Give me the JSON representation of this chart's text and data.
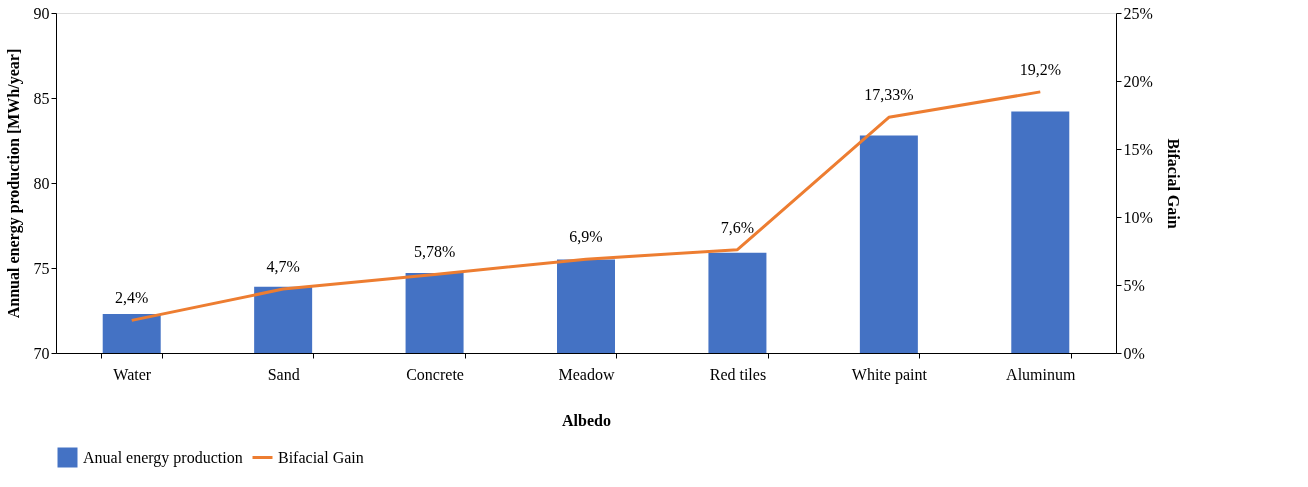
{
  "chart_data": {
    "type": "bar",
    "categories": [
      "Water",
      "Sand",
      "Concrete",
      "Meadow",
      "Red tiles",
      "White paint",
      "Aluminum"
    ],
    "xlabel": "Albedo",
    "ylabel": "Annual energy production [MWh/year]",
    "y2label": "Bifacial Gain",
    "series": [
      {
        "name": "Anual energy production",
        "color": "#4472c4",
        "values": [
          72.3,
          73.9,
          74.7,
          75.5,
          75.9,
          82.8,
          84.2
        ]
      },
      {
        "name": "Bifacial Gain",
        "type": "line",
        "axis": "y2",
        "color": "#ed7d31",
        "values": [
          2.4,
          4.7,
          5.78,
          6.9,
          7.6,
          17.33,
          19.2
        ],
        "value_labels": [
          "2,4%",
          "4,7%",
          "5,78%",
          "6,9%",
          "7,6%",
          "17,33%",
          "19,2%"
        ]
      }
    ],
    "ylim": [
      70,
      90
    ],
    "yticks": [
      70,
      75,
      80,
      85,
      90
    ],
    "y2lim": [
      0,
      25
    ],
    "y2ticks": [
      {
        "value": 0,
        "label": "0%"
      },
      {
        "value": 5,
        "label": "5%"
      },
      {
        "value": 10,
        "label": "10%"
      },
      {
        "value": 15,
        "label": "15%"
      },
      {
        "value": 20,
        "label": "20%"
      },
      {
        "value": 25,
        "label": "25%"
      }
    ],
    "grid": false,
    "legend": "bottom",
    "marker": "none",
    "line_style": "solid"
  }
}
